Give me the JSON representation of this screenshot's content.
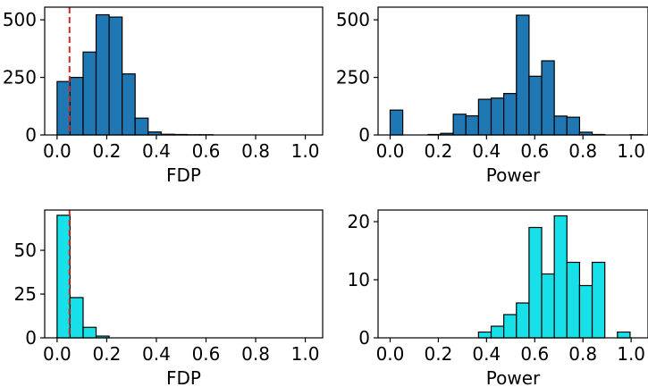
{
  "chart_data": [
    {
      "type": "bar",
      "panel": "top-left",
      "title": "",
      "xlabel": "FDP",
      "ylabel": "",
      "xlim": [
        -0.05,
        1.07
      ],
      "ylim": [
        0,
        555
      ],
      "xticks": [
        0.0,
        0.2,
        0.4,
        0.6,
        0.8,
        1.0
      ],
      "xtick_labels": [
        "0.0",
        "0.2",
        "0.4",
        "0.6",
        "0.8",
        "1.0"
      ],
      "yticks": [
        0,
        250,
        500
      ],
      "ytick_labels": [
        "0",
        "250",
        "500"
      ],
      "bin_start": 0.0,
      "bin_width": 0.0524,
      "values": [
        232,
        250,
        360,
        522,
        512,
        265,
        73,
        13,
        3,
        2,
        1,
        1,
        0,
        0,
        0,
        0,
        0,
        0,
        0,
        0
      ],
      "fill_color": "#1f77b4",
      "edge_color": "#000000",
      "reference_line": {
        "x": 0.05,
        "color": "#d62728",
        "style": "dashed"
      },
      "grid": false,
      "legend": "none"
    },
    {
      "type": "bar",
      "panel": "top-right",
      "title": "",
      "xlabel": "Power",
      "ylabel": "",
      "xlim": [
        -0.05,
        1.07
      ],
      "ylim": [
        0,
        555
      ],
      "xticks": [
        0.0,
        0.2,
        0.4,
        0.6,
        0.8,
        1.0
      ],
      "xtick_labels": [
        "0.0",
        "0.2",
        "0.4",
        "0.6",
        "0.8",
        "1.0"
      ],
      "yticks": [
        0,
        250,
        500
      ],
      "ytick_labels": [
        "0",
        "250",
        "500"
      ],
      "bin_start": 0.0,
      "bin_width": 0.0524,
      "values": [
        108,
        0,
        0,
        2,
        7,
        90,
        83,
        155,
        160,
        180,
        520,
        255,
        322,
        82,
        77,
        12,
        2,
        0,
        0,
        1
      ],
      "fill_color": "#1f77b4",
      "edge_color": "#000000",
      "grid": false,
      "legend": "none"
    },
    {
      "type": "bar",
      "panel": "bottom-left",
      "title": "",
      "xlabel": "FDP",
      "ylabel": "",
      "xlim": [
        -0.05,
        1.07
      ],
      "ylim": [
        0,
        73
      ],
      "xticks": [
        0.0,
        0.2,
        0.4,
        0.6,
        0.8,
        1.0
      ],
      "xtick_labels": [
        "0.0",
        "0.2",
        "0.4",
        "0.6",
        "0.8",
        "1.0"
      ],
      "yticks": [
        0,
        25,
        50
      ],
      "ytick_labels": [
        "0",
        "25",
        "50"
      ],
      "bin_start": 0.0,
      "bin_width": 0.0524,
      "values": [
        70,
        23,
        6,
        1,
        0,
        0,
        0,
        0,
        0,
        0,
        0,
        0,
        0,
        0,
        0,
        0,
        0,
        0,
        0,
        0
      ],
      "fill_color": "#17e0e8",
      "edge_color": "#000000",
      "reference_line": {
        "x": 0.05,
        "color": "#d62728",
        "style": "dashed"
      },
      "grid": false,
      "legend": "none"
    },
    {
      "type": "bar",
      "panel": "bottom-right",
      "title": "",
      "xlabel": "Power",
      "ylabel": "",
      "xlim": [
        -0.05,
        1.07
      ],
      "ylim": [
        0,
        22
      ],
      "xticks": [
        0.0,
        0.2,
        0.4,
        0.6,
        0.8,
        1.0
      ],
      "xtick_labels": [
        "0.0",
        "0.2",
        "0.4",
        "0.6",
        "0.8",
        "1.0"
      ],
      "yticks": [
        0,
        10,
        20
      ],
      "ytick_labels": [
        "0",
        "10",
        "20"
      ],
      "bin_start": 0.0,
      "bin_width": 0.0524,
      "values": [
        0,
        0,
        0,
        0,
        0,
        0,
        0,
        1,
        2,
        4,
        6,
        19,
        11,
        21,
        13,
        9,
        13,
        0,
        1,
        0
      ],
      "fill_color": "#17e0e8",
      "edge_color": "#000000",
      "grid": false,
      "legend": "none"
    }
  ]
}
